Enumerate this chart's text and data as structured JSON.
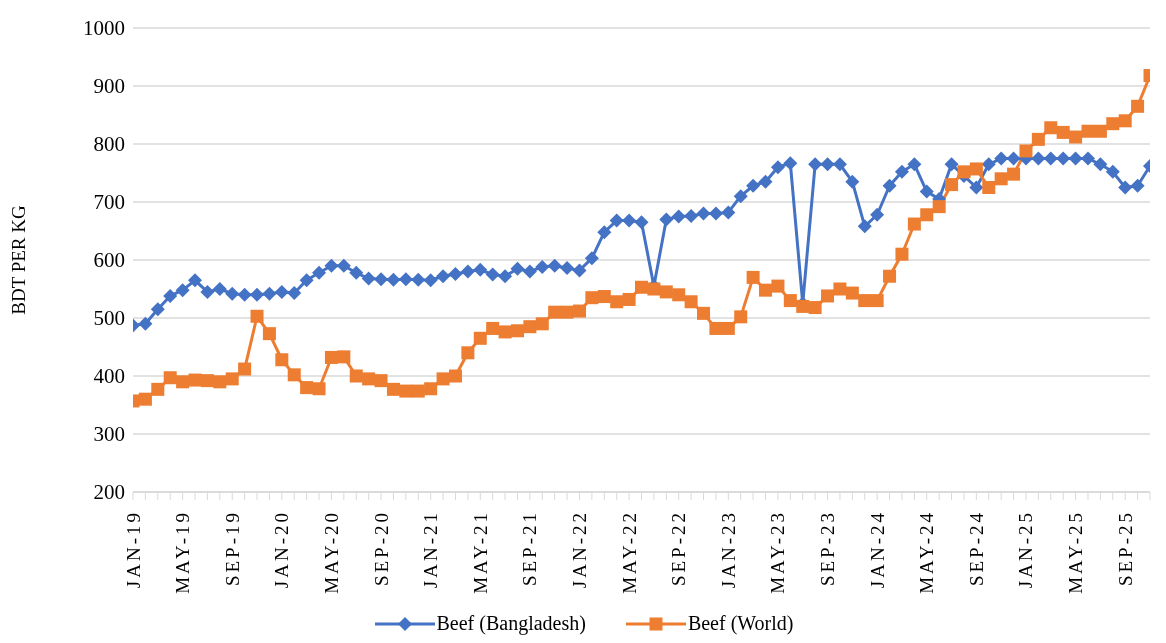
{
  "chart_data": {
    "type": "line",
    "ylabel": "BDT PER KG",
    "categories": [
      "JAN-19",
      null,
      null,
      null,
      "MAY-19",
      null,
      null,
      null,
      "SEP-19",
      null,
      null,
      null,
      "JAN-20",
      null,
      null,
      null,
      "MAY-20",
      null,
      null,
      null,
      "SEP-20",
      null,
      null,
      null,
      "JAN-21",
      null,
      null,
      null,
      "MAY-21",
      null,
      null,
      null,
      "SEP-21",
      null,
      null,
      null,
      "JAN-22",
      null,
      null,
      null,
      "MAY-22",
      null,
      null,
      null,
      "SEP-22",
      null,
      null,
      null,
      "JAN-23",
      null,
      null,
      null,
      "MAY-23",
      null,
      null,
      null,
      "SEP-23",
      null,
      null,
      null,
      "JAN-24",
      null,
      null,
      null,
      "MAY-24",
      null,
      null,
      null,
      "SEP-24",
      null,
      null,
      null,
      "JAN-25",
      null,
      null,
      null,
      "MAY-25",
      null,
      null,
      null,
      "SEP-25",
      null,
      null
    ],
    "series": [
      {
        "name": "Beef (Bangladesh)",
        "color": "#4472c4",
        "marker": "diamond",
        "values": [
          487,
          490,
          515,
          538,
          548,
          565,
          545,
          550,
          542,
          540,
          540,
          542,
          545,
          543,
          565,
          578,
          590,
          590,
          578,
          568,
          567,
          566,
          567,
          566,
          565,
          572,
          576,
          580,
          583,
          575,
          572,
          585,
          580,
          588,
          590,
          586,
          582,
          603,
          648,
          668,
          668,
          665,
          555,
          670,
          675,
          676,
          680,
          680,
          682,
          710,
          728,
          735,
          760,
          767,
          525,
          765,
          765,
          765,
          735,
          658,
          678,
          728,
          752,
          765,
          718,
          705,
          765,
          745,
          725,
          765,
          775,
          775,
          775,
          775,
          775,
          775,
          775,
          775,
          765,
          752,
          725,
          728,
          762
        ]
      },
      {
        "name": "Beef (World)",
        "color": "#ed7d31",
        "marker": "square",
        "values": [
          357,
          360,
          377,
          397,
          390,
          393,
          392,
          390,
          395,
          412,
          503,
          473,
          428,
          402,
          380,
          378,
          432,
          433,
          400,
          395,
          392,
          377,
          374,
          374,
          378,
          395,
          400,
          440,
          465,
          482,
          476,
          478,
          485,
          490,
          510,
          510,
          512,
          535,
          537,
          528,
          532,
          553,
          550,
          545,
          540,
          528,
          508,
          482,
          482,
          502,
          570,
          548,
          555,
          530,
          520,
          518,
          538,
          550,
          543,
          530,
          530,
          572,
          610,
          662,
          678,
          692,
          730,
          752,
          757,
          725,
          740,
          748,
          788,
          808,
          828,
          820,
          812,
          822,
          822,
          835,
          840,
          865,
          918
        ]
      }
    ],
    "ylim": [
      200,
      1000
    ],
    "yticks": [
      200,
      300,
      400,
      500,
      600,
      700,
      800,
      900,
      1000
    ],
    "grid": "y",
    "legend": "bottom"
  }
}
